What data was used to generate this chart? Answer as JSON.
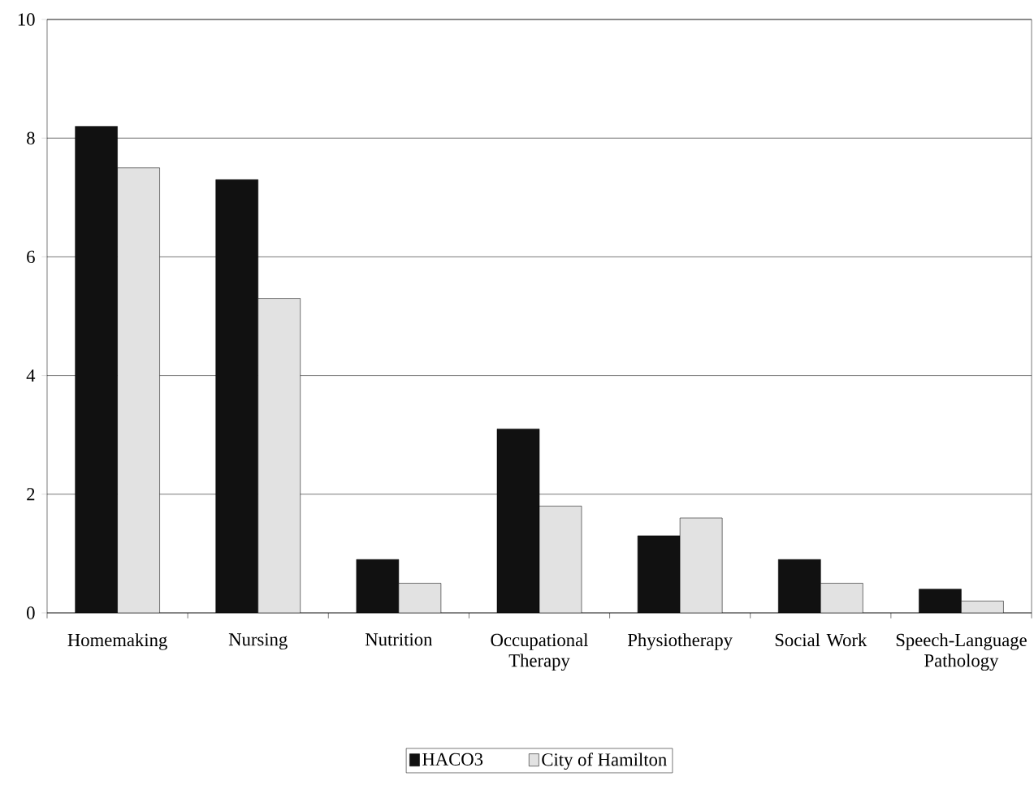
{
  "chart_data": {
    "type": "bar",
    "categories": [
      "Homemaking",
      "Nursing",
      "Nutrition",
      "Occupational Therapy",
      "Physiotherapy",
      "Social Work",
      "Speech-Language Pathology"
    ],
    "series": [
      {
        "name": "HACO3",
        "color": "#111111",
        "values": [
          8.2,
          7.3,
          0.9,
          3.1,
          1.3,
          0.9,
          0.4
        ]
      },
      {
        "name": "City of Hamilton",
        "color": "#e2e2e2",
        "values": [
          7.5,
          5.3,
          0.5,
          1.8,
          1.6,
          0.5,
          0.2
        ]
      }
    ],
    "ylim": [
      0,
      10
    ],
    "yticks": [
      0,
      2,
      4,
      6,
      8,
      10
    ],
    "grid": "y",
    "legend": "bottom"
  }
}
